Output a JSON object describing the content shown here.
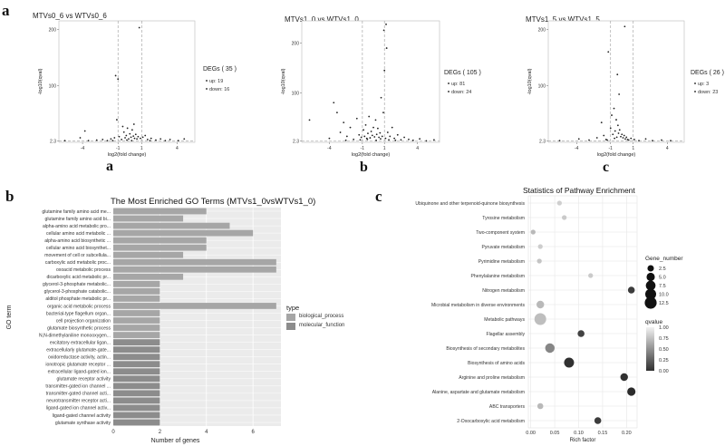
{
  "figure": {
    "panel_a": "a",
    "panel_b": "b",
    "panel_c": "c",
    "sublabels": [
      "a",
      "b",
      "c"
    ]
  },
  "chart_data": [
    {
      "type": "scatter",
      "title": "MTVs0_6  vs  WTVs0_6",
      "xlabel": "log2(fold change)",
      "ylabel": "-log10(qval)",
      "xticks": [
        "-4",
        "-1",
        "1",
        "4"
      ],
      "yticks": [
        "2.3",
        "100",
        "200"
      ],
      "xlim": [
        -6,
        5.5
      ],
      "ylim": [
        0,
        215
      ],
      "thresholds": {
        "x": [
          -1,
          1
        ],
        "y": 2.3
      },
      "legend": {
        "title": "DEGs ( 35 )",
        "items": [
          "up: 19",
          "down: 16"
        ]
      },
      "points": [
        [
          -5.5,
          3
        ],
        [
          -4.2,
          8
        ],
        [
          -3.8,
          20
        ],
        [
          -3.5,
          3
        ],
        [
          -2.8,
          4
        ],
        [
          -2.3,
          5
        ],
        [
          -1.9,
          3
        ],
        [
          -1.6,
          6
        ],
        [
          -1.3,
          8
        ],
        [
          -1.2,
          118
        ],
        [
          -1.1,
          40
        ],
        [
          -1.0,
          112
        ],
        [
          -0.9,
          10
        ],
        [
          -0.7,
          5
        ],
        [
          -0.5,
          18
        ],
        [
          -0.4,
          8
        ],
        [
          -0.3,
          12
        ],
        [
          -0.2,
          25
        ],
        [
          -0.1,
          6
        ],
        [
          0.0,
          15
        ],
        [
          0.1,
          9
        ],
        [
          0.2,
          22
        ],
        [
          0.3,
          11
        ],
        [
          0.4,
          7
        ],
        [
          0.5,
          14
        ],
        [
          0.6,
          6
        ],
        [
          0.7,
          10
        ],
        [
          0.8,
          203
        ],
        [
          0.9,
          7
        ],
        [
          1.1,
          9
        ],
        [
          1.3,
          12
        ],
        [
          1.5,
          5
        ],
        [
          1.8,
          7
        ],
        [
          2.2,
          4
        ],
        [
          2.6,
          6
        ],
        [
          3.0,
          3
        ],
        [
          3.4,
          5
        ],
        [
          4.1,
          3
        ],
        [
          4.6,
          6
        ],
        [
          -0.6,
          28
        ],
        [
          0.35,
          32
        ],
        [
          -0.25,
          4
        ],
        [
          0.15,
          3
        ],
        [
          -1.45,
          3
        ],
        [
          1.7,
          3
        ]
      ]
    },
    {
      "type": "scatter",
      "title": "MTVs1_0  vs  WTVs1_0",
      "xlabel": "log2(fold change)",
      "ylabel": "-log10(qval)",
      "xticks": [
        "-4",
        "-1",
        "1",
        "4"
      ],
      "yticks": [
        "2.3",
        "100",
        "200"
      ],
      "xlim": [
        -6.5,
        6
      ],
      "ylim": [
        0,
        245
      ],
      "thresholds": {
        "x": [
          -1,
          1
        ],
        "y": 2.3
      },
      "legend": {
        "title": "DEGs ( 105 )",
        "items": [
          "up: 81",
          "down: 24"
        ]
      },
      "points": [
        [
          -5.8,
          45
        ],
        [
          -4.0,
          8
        ],
        [
          -3.6,
          80
        ],
        [
          -3.3,
          60
        ],
        [
          -3.0,
          20
        ],
        [
          -2.7,
          40
        ],
        [
          -2.4,
          12
        ],
        [
          -2.1,
          30
        ],
        [
          -1.8,
          6
        ],
        [
          -1.5,
          48
        ],
        [
          -1.3,
          15
        ],
        [
          -1.1,
          10
        ],
        [
          -0.9,
          25
        ],
        [
          -0.8,
          12
        ],
        [
          -0.7,
          35
        ],
        [
          -0.6,
          8
        ],
        [
          -0.5,
          18
        ],
        [
          -0.4,
          52
        ],
        [
          -0.3,
          9
        ],
        [
          -0.2,
          22
        ],
        [
          -0.1,
          14
        ],
        [
          0.0,
          30
        ],
        [
          0.1,
          11
        ],
        [
          0.2,
          45
        ],
        [
          0.3,
          16
        ],
        [
          0.4,
          28
        ],
        [
          0.5,
          10
        ],
        [
          0.6,
          19
        ],
        [
          0.7,
          90
        ],
        [
          0.8,
          12
        ],
        [
          0.9,
          60
        ],
        [
          1.0,
          145
        ],
        [
          1.1,
          8
        ],
        [
          1.2,
          190
        ],
        [
          1.3,
          20
        ],
        [
          1.5,
          12
        ],
        [
          1.7,
          30
        ],
        [
          1.9,
          8
        ],
        [
          2.2,
          15
        ],
        [
          2.5,
          5
        ],
        [
          2.8,
          10
        ],
        [
          3.2,
          6
        ],
        [
          3.6,
          4
        ],
        [
          4.2,
          7
        ],
        [
          4.8,
          3
        ],
        [
          5.5,
          5
        ],
        [
          -0.55,
          6
        ],
        [
          0.25,
          4
        ],
        [
          0.65,
          7
        ],
        [
          -1.2,
          5
        ],
        [
          1.4,
          5
        ],
        [
          2.0,
          4
        ],
        [
          -2.5,
          4
        ],
        [
          0.95,
          226
        ],
        [
          1.15,
          238
        ]
      ]
    },
    {
      "type": "scatter",
      "title": "MTVs1_5  vs  WTVs1_5",
      "xlabel": "log2(fold change)",
      "ylabel": "-log10(qval)",
      "xticks": [
        "-4",
        "-1",
        "1",
        "4"
      ],
      "yticks": [
        "2.3",
        "100",
        "200"
      ],
      "xlim": [
        -6.5,
        5.5
      ],
      "ylim": [
        0,
        215
      ],
      "thresholds": {
        "x": [
          -1,
          1
        ],
        "y": 2.3
      },
      "legend": {
        "title": "DEGs ( 26 )",
        "items": [
          "up: 3",
          "down: 23"
        ]
      },
      "points": [
        [
          -5.5,
          3
        ],
        [
          -3.8,
          6
        ],
        [
          -2.9,
          4
        ],
        [
          -2.2,
          8
        ],
        [
          -1.8,
          35
        ],
        [
          -1.6,
          12
        ],
        [
          -1.4,
          5
        ],
        [
          -1.2,
          160
        ],
        [
          -1.0,
          25
        ],
        [
          -0.9,
          48
        ],
        [
          -0.8,
          14
        ],
        [
          -0.7,
          60
        ],
        [
          -0.6,
          20
        ],
        [
          -0.5,
          40
        ],
        [
          -0.45,
          9
        ],
        [
          -0.4,
          120
        ],
        [
          -0.35,
          30
        ],
        [
          -0.3,
          16
        ],
        [
          -0.2,
          22
        ],
        [
          -0.1,
          10
        ],
        [
          0.0,
          14
        ],
        [
          0.1,
          8
        ],
        [
          0.2,
          12
        ],
        [
          0.3,
          6
        ],
        [
          0.4,
          9
        ],
        [
          0.5,
          5
        ],
        [
          0.6,
          4
        ],
        [
          0.8,
          7
        ],
        [
          1.1,
          5
        ],
        [
          1.5,
          3
        ],
        [
          2.1,
          6
        ],
        [
          2.7,
          3
        ],
        [
          3.5,
          4
        ],
        [
          4.3,
          3
        ],
        [
          -0.25,
          85
        ],
        [
          0.25,
          205
        ],
        [
          -0.65,
          7
        ],
        [
          -1.3,
          4
        ]
      ]
    },
    {
      "type": "bar",
      "orientation": "horizontal",
      "title": "The Most Enriched GO Terms (MTVs1_0vsWTVs1_0)",
      "xlabel": "Number of genes",
      "ylabel": "GO term",
      "xticks": [
        "0",
        "2",
        "4",
        "6"
      ],
      "xlim": [
        0,
        7.2
      ],
      "legend": {
        "title": "type",
        "items": [
          "biological_process",
          "molecular_function"
        ]
      },
      "categories": [
        "glutamine family amino acid me...",
        "glutamine family amino acid bi...",
        "alpha-amino acid metabolic pro...",
        "cellular amino acid metabolic ...",
        "alpha-amino acid biosynthetic ...",
        "cellular amino acid biosynthet...",
        "movement of cell or subcellula...",
        "carboxylic acid metabolic proc...",
        "oxoacid metabolic process",
        "dicarboxylic acid metabolic pr...",
        "glycerol-3-phosphate metabolic...",
        "glycerol-3-phosphate catabolic...",
        "alditol phosphate metabolic pr...",
        "organic acid metabolic process",
        "bacterial-type flagellum organ...",
        "cell projection organization",
        "glutamate biosynthetic process",
        "N,N-dimethylaniline monooxygen...",
        "excitatory extracellular ligan...",
        "extracellularly glutamate-gate...",
        "oxidoreductase activity, actin...",
        "ionotropic glutamate receptor ...",
        "extracellular ligand-gated ion...",
        "glutamate receptor activity",
        "transmitter-gated ion channel ...",
        "transmitter-gated channel acti...",
        "neurotransmitter receptor acti...",
        "ligand-gated ion channel activ...",
        "ligand-gated channel activity",
        "glutamate synthase activity"
      ],
      "values": [
        4,
        3,
        5,
        6,
        4,
        4,
        3,
        7,
        7,
        3,
        2,
        2,
        2,
        7,
        2,
        2,
        2,
        2,
        2,
        2,
        2,
        2,
        2,
        2,
        2,
        2,
        2,
        2,
        2,
        2
      ]
    },
    {
      "type": "scatter",
      "title": "Statistics of Pathway Enrichment",
      "xlabel": "Rich factor",
      "xticks": [
        "0.00",
        "0.05",
        "0.10",
        "0.15",
        "0.20"
      ],
      "xlim": [
        -0.005,
        0.222
      ],
      "size_legend": {
        "title": "Gene_number",
        "items": [
          "2.5",
          "5.0",
          "7.5",
          "10.0",
          "12.5"
        ]
      },
      "color_legend": {
        "title": "qvalue",
        "ticks": [
          "1.00",
          "0.75",
          "0.50",
          "0.25",
          "0.00"
        ]
      },
      "categories": [
        "Ubiquinone and other terpenoid-quinone biosynthesis",
        "Tyrosine metabolism",
        "Two-component system",
        "Pyruvate metabolism",
        "Pyrimidine metabolism",
        "Phenylalanine metabolism",
        "Nitrogen metabolism",
        "Microbial metabolism in diverse environments",
        "Metabolic pathways",
        "Flagellar assembly",
        "Biosynthesis of secondary metabolites",
        "Biosynthesis of amino acids",
        "Arginine and proline metabolism",
        "Alanine, aspartate and glutamate metabolism",
        "ABC transporters",
        "2-Oxocarboxylic acid metabolism"
      ],
      "points": [
        {
          "rich": 0.06,
          "genes": 1,
          "q": 0.98
        },
        {
          "rich": 0.07,
          "genes": 1,
          "q": 0.95
        },
        {
          "rich": 0.005,
          "genes": 1,
          "q": 0.85
        },
        {
          "rich": 0.02,
          "genes": 1,
          "q": 0.97
        },
        {
          "rich": 0.018,
          "genes": 1,
          "q": 0.92
        },
        {
          "rich": 0.125,
          "genes": 1,
          "q": 0.95
        },
        {
          "rich": 0.21,
          "genes": 3,
          "q": 0.12
        },
        {
          "rich": 0.02,
          "genes": 4,
          "q": 0.85
        },
        {
          "rich": 0.02,
          "genes": 12,
          "q": 0.88
        },
        {
          "rich": 0.105,
          "genes": 3,
          "q": 0.15
        },
        {
          "rich": 0.04,
          "genes": 7,
          "q": 0.55
        },
        {
          "rich": 0.08,
          "genes": 8,
          "q": 0.05
        },
        {
          "rich": 0.195,
          "genes": 4,
          "q": 0.05
        },
        {
          "rich": 0.21,
          "genes": 5,
          "q": 0.02
        },
        {
          "rich": 0.02,
          "genes": 2,
          "q": 0.85
        },
        {
          "rich": 0.14,
          "genes": 3,
          "q": 0.12
        }
      ]
    }
  ]
}
